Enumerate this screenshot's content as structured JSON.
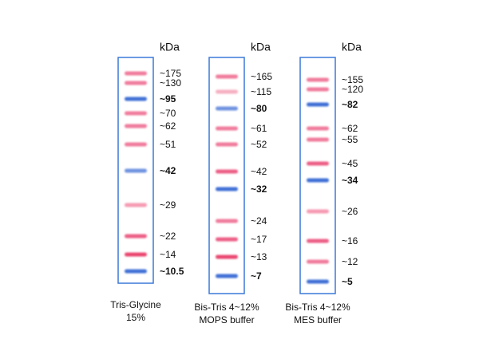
{
  "lanes": [
    {
      "unit": "kDa",
      "caption": [
        "Tris-Glycine",
        "15%"
      ],
      "bands": [
        {
          "label": "~175",
          "color": "#f07b9c"
        },
        {
          "label": "~130",
          "color": "#f07b9c"
        },
        {
          "label": "~95",
          "color": "#3f6fd6",
          "bold": true
        },
        {
          "label": "~70",
          "color": "#f07b9c"
        },
        {
          "label": "~62",
          "color": "#f07b9c"
        },
        {
          "label": "~51",
          "color": "#f07b9c"
        },
        {
          "label": "~42",
          "color": "#6f93e0",
          "bold": true
        },
        {
          "label": "~29",
          "color": "#f59ab2"
        },
        {
          "label": "~22",
          "color": "#ec5f86"
        },
        {
          "label": "~14",
          "color": "#e9466f"
        },
        {
          "label": "~10.5",
          "color": "#3f6fd6",
          "bold": true
        }
      ]
    },
    {
      "unit": "kDa",
      "caption": [
        "Bis-Tris 4~12%",
        "MOPS buffer"
      ],
      "bands": [
        {
          "label": "~165",
          "color": "#f07b9c"
        },
        {
          "label": "~115",
          "color": "#f6b0c2"
        },
        {
          "label": "~80",
          "color": "#6f93e0",
          "bold": true
        },
        {
          "label": "~61",
          "color": "#f07b9c"
        },
        {
          "label": "~52",
          "color": "#f07b9c"
        },
        {
          "label": "~42",
          "color": "#ec5f86"
        },
        {
          "label": "~32",
          "color": "#3f6fd6",
          "bold": true
        },
        {
          "label": "~24",
          "color": "#f07b9c"
        },
        {
          "label": "~17",
          "color": "#ec5f86"
        },
        {
          "label": "~13",
          "color": "#e9466f"
        },
        {
          "label": "~7",
          "color": "#3f6fd6",
          "bold": true
        }
      ]
    },
    {
      "unit": "kDa",
      "caption": [
        "Bis-Tris 4~12%",
        "MES buffer"
      ],
      "bands": [
        {
          "label": "~155",
          "color": "#f07b9c"
        },
        {
          "label": "~120",
          "color": "#f07b9c"
        },
        {
          "label": "~82",
          "color": "#3f6fd6",
          "bold": true
        },
        {
          "label": "~62",
          "color": "#f07b9c"
        },
        {
          "label": "~55",
          "color": "#f07b9c"
        },
        {
          "label": "~45",
          "color": "#ec5f86"
        },
        {
          "label": "~34",
          "color": "#3f6fd6",
          "bold": true
        },
        {
          "label": "~26",
          "color": "#f59ab2"
        },
        {
          "label": "~16",
          "color": "#ec5f86"
        },
        {
          "label": "~12",
          "color": "#f07b9c"
        },
        {
          "label": "~5",
          "color": "#3f6fd6",
          "bold": true
        }
      ]
    }
  ]
}
